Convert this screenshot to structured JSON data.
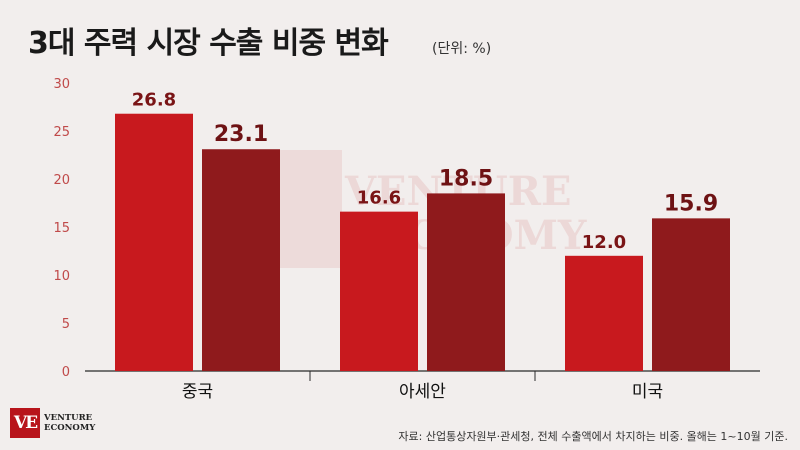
{
  "title": "3대 주력 시장 수출 비중 변화",
  "unit_label": "(단위: %)",
  "source_note": "자료: 산업통상자원부·관세청, 전체 수출액에서 차지하는 비중. 올해는 1~10월 기준.",
  "logo": {
    "mark": "VE",
    "line1": "VENTURE",
    "line2": "ECONOMY"
  },
  "watermark": {
    "line1": "VENTURE",
    "line2": "ECONOMY"
  },
  "colors": {
    "series1": "#c8191e",
    "series2": "#8f1a1c",
    "axis_tick": "#c04a4a",
    "label1": "#7a1416",
    "label2": "#6e1214"
  },
  "chart_data": {
    "type": "bar",
    "categories": [
      "중국",
      "아세안",
      "미국"
    ],
    "series": [
      {
        "values": [
          26.8,
          16.6,
          12.0
        ]
      },
      {
        "values": [
          23.1,
          18.5,
          15.9
        ]
      }
    ],
    "value_labels": [
      [
        "26.8",
        "16.6",
        "12.0"
      ],
      [
        "23.1",
        "18.5",
        "15.9"
      ]
    ],
    "ylim": [
      0,
      30
    ],
    "yticks": [
      0,
      5,
      10,
      15,
      20,
      25,
      30
    ],
    "grid": false
  }
}
